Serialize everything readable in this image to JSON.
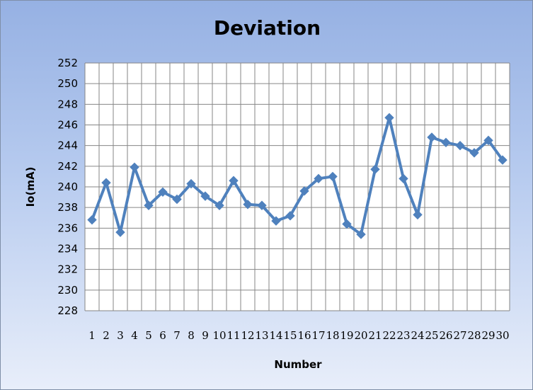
{
  "chart_data": {
    "type": "line",
    "title": "Deviation",
    "xlabel": "Number",
    "ylabel": "Io(mA)",
    "ylim": [
      228,
      252
    ],
    "ytick_step": 2,
    "grid": true,
    "legend": "none",
    "categories": [
      "1",
      "2",
      "3",
      "4",
      "5",
      "6",
      "7",
      "8",
      "9",
      "10",
      "11",
      "12",
      "13",
      "14",
      "15",
      "16",
      "17",
      "18",
      "19",
      "20",
      "21",
      "22",
      "23",
      "24",
      "25",
      "26",
      "27",
      "28",
      "29",
      "30"
    ],
    "series": [
      {
        "color": "#4f81bd",
        "marker": "diamond",
        "values": [
          236.8,
          240.4,
          235.6,
          241.9,
          238.2,
          239.5,
          238.8,
          240.3,
          239.1,
          238.2,
          240.6,
          238.3,
          238.2,
          236.7,
          237.2,
          239.6,
          240.8,
          241.0,
          236.4,
          235.4,
          241.7,
          246.7,
          240.8,
          237.3,
          244.8,
          244.3,
          244.0,
          243.3,
          244.5,
          242.6
        ]
      }
    ]
  }
}
